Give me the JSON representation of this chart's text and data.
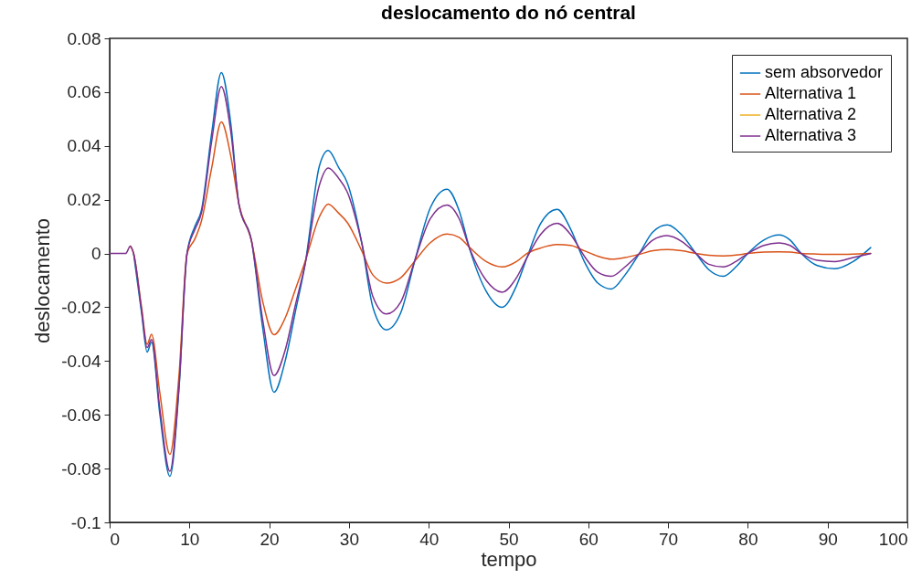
{
  "chart_data": {
    "type": "line",
    "title": "deslocamento do nó central",
    "xlabel": "tempo",
    "ylabel": "deslocamento",
    "x": [
      0,
      2.0,
      2.6,
      3.0,
      4.0,
      4.7,
      5.25,
      6.3,
      7.55,
      8.7,
      9.7,
      10.7,
      11.5,
      12.8,
      14.0,
      15.2,
      16.2,
      17.8,
      19.2,
      20.6,
      22.0,
      23.3,
      24.5,
      26.3,
      27.4,
      28.7,
      29.8,
      31.6,
      33.0,
      34.7,
      36.5,
      38.2,
      40.2,
      42.3,
      43.8,
      45.2,
      47.2,
      49.2,
      51.0,
      52.3,
      54.0,
      56.1,
      57.8,
      59.5,
      61.2,
      62.9,
      64.6,
      66.4,
      68.1,
      69.9,
      71.7,
      73.5,
      75.1,
      76.9,
      78.5,
      80.0,
      82.0,
      83.9,
      85.3,
      86.7,
      88.7,
      90.9,
      93.2,
      95.4
    ],
    "series": [
      {
        "name": "sem absorvedor",
        "color": "#0072bd",
        "values": [
          null,
          null,
          null,
          0,
          -0.022,
          -0.0367,
          -0.0329,
          -0.06,
          -0.0829,
          -0.05,
          0,
          0.0102,
          0.016,
          0.045,
          0.0673,
          0.048,
          0.0184,
          0.0044,
          -0.028,
          -0.0516,
          -0.04,
          -0.0214,
          -0.004,
          0.0326,
          0.0383,
          0.032,
          0.0262,
          0.004,
          -0.02,
          -0.0284,
          -0.022,
          -0.0033,
          0.017,
          0.0239,
          0.016,
          0.001,
          -0.014,
          -0.02,
          -0.012,
          -0.0016,
          0.011,
          0.0164,
          0.009,
          -0.003,
          -0.011,
          -0.0132,
          -0.008,
          0,
          0.008,
          0.0106,
          0.007,
          0,
          -0.006,
          -0.0085,
          -0.005,
          0,
          0.005,
          0.0069,
          0.005,
          0,
          -0.0045,
          -0.0057,
          -0.003,
          0.0022
        ]
      },
      {
        "name": "Alternativa 1",
        "color": "#d95319",
        "values": [
          null,
          null,
          0.0027,
          0,
          -0.02,
          -0.0338,
          -0.03,
          -0.052,
          -0.0747,
          -0.045,
          0,
          0.0055,
          0.012,
          0.032,
          0.0489,
          0.036,
          0.0184,
          0.0044,
          -0.018,
          -0.0302,
          -0.024,
          -0.0132,
          -0.003,
          0.0137,
          0.0184,
          0.015,
          0.0115,
          0.001,
          -0.008,
          -0.011,
          -0.009,
          -0.003,
          0.004,
          0.0072,
          0.006,
          0.002,
          -0.003,
          -0.005,
          -0.003,
          0,
          0.002,
          0.0033,
          0.003,
          0.001,
          -0.001,
          -0.0021,
          -0.0015,
          -0.0003,
          0.001,
          0.0015,
          0.001,
          0,
          -0.0007,
          -0.0009,
          -0.0006,
          0,
          0.0005,
          0.0006,
          0.0005,
          0,
          -0.0002,
          -0.0003,
          -0.0002,
          0
        ]
      },
      {
        "name": "Alternativa 2",
        "color": "#edb120",
        "values": [
          null,
          null,
          null,
          null,
          null,
          null,
          null,
          null,
          null,
          null,
          null,
          null,
          null,
          null,
          null,
          null,
          null,
          null,
          null,
          null,
          null,
          null,
          null,
          null,
          null,
          null,
          null,
          null,
          null,
          null,
          null,
          null,
          null,
          null,
          null,
          null,
          null,
          null,
          null,
          null,
          null,
          null,
          null,
          null,
          null,
          null,
          null,
          null,
          null,
          null,
          null,
          null,
          null,
          null,
          null,
          null,
          null,
          null,
          null,
          null,
          null,
          null,
          null,
          null
        ]
      },
      {
        "name": "Alternativa 3",
        "color": "#7e2f8e",
        "values": [
          0,
          0,
          0.0027,
          0,
          -0.021,
          -0.035,
          -0.032,
          -0.058,
          -0.081,
          -0.049,
          0,
          0.009,
          0.015,
          0.042,
          0.0621,
          0.045,
          0.0184,
          0.0044,
          -0.025,
          -0.0454,
          -0.036,
          -0.019,
          -0.004,
          0.0255,
          0.0318,
          0.028,
          0.0228,
          0.004,
          -0.016,
          -0.0225,
          -0.018,
          -0.003,
          0.013,
          0.018,
          0.013,
          0.0013,
          -0.01,
          -0.0144,
          -0.009,
          -0.0016,
          0.007,
          0.0112,
          0.007,
          -0.001,
          -0.007,
          -0.0085,
          -0.005,
          0,
          0.005,
          0.0066,
          0.0045,
          0,
          -0.004,
          -0.005,
          -0.003,
          0,
          0.003,
          0.0039,
          0.003,
          0,
          -0.0025,
          -0.003,
          -0.0015,
          0
        ]
      }
    ],
    "xlim": [
      0,
      100
    ],
    "xticks": [
      0,
      10,
      20,
      30,
      40,
      50,
      60,
      70,
      80,
      90,
      100
    ],
    "ylim": [
      -0.1,
      0.08
    ],
    "yticks": [
      -0.1,
      -0.08,
      -0.06,
      -0.04,
      -0.02,
      0,
      0.02,
      0.04,
      0.06,
      0.08
    ],
    "legend": "top right",
    "grid": false,
    "marker": "none",
    "line_style": "solid"
  }
}
